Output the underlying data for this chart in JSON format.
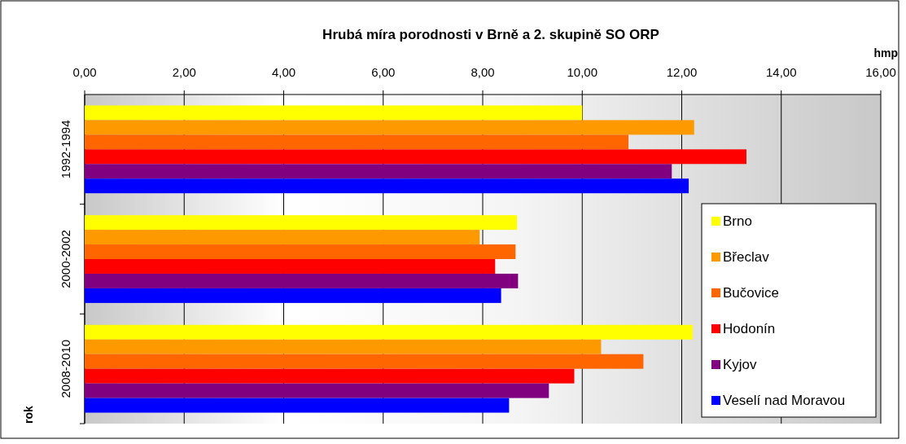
{
  "chart_data": {
    "type": "bar",
    "orientation": "horizontal",
    "title": "Hrubá míra porodnosti v Brně a 2. skupině SO ORP",
    "xlabel": "hmp",
    "ylabel": "rok",
    "categories": [
      "1992-1994",
      "2000-2002",
      "2008-2010"
    ],
    "series": [
      {
        "name": "Brno",
        "color": "#ffff00",
        "values": [
          10.0,
          8.69,
          12.22
        ]
      },
      {
        "name": "Břeclav",
        "color": "#ff9900",
        "values": [
          12.25,
          7.94,
          10.38
        ]
      },
      {
        "name": "Bučovice",
        "color": "#ff6600",
        "values": [
          10.93,
          8.66,
          11.23
        ]
      },
      {
        "name": "Hodonín",
        "color": "#ff0000",
        "values": [
          13.3,
          8.25,
          9.84
        ]
      },
      {
        "name": "Kyjov",
        "color": "#800080",
        "values": [
          11.8,
          8.71,
          9.33
        ]
      },
      {
        "name": "Veselí nad Moravou",
        "color": "#0000ff",
        "values": [
          12.14,
          8.37,
          8.53
        ]
      }
    ],
    "xlim": [
      0,
      16
    ],
    "xticks": [
      {
        "value": 0,
        "label": "0,00"
      },
      {
        "value": 2,
        "label": "2,00"
      },
      {
        "value": 4,
        "label": "4,00"
      },
      {
        "value": 6,
        "label": "6,00"
      },
      {
        "value": 8,
        "label": "8,00"
      },
      {
        "value": 10,
        "label": "10,00"
      },
      {
        "value": 12,
        "label": "12,00"
      },
      {
        "value": 14,
        "label": "14,00"
      },
      {
        "value": 16,
        "label": "16,00"
      }
    ],
    "grid": "x",
    "legend": "right"
  }
}
